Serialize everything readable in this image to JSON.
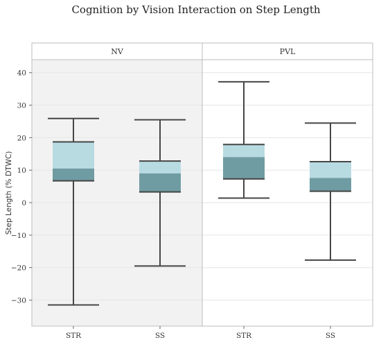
{
  "chart_data": {
    "type": "boxplot",
    "title": "Cognition by Vision Interaction on Step Length",
    "ylabel": "Step Length (% DTWC)",
    "xlabel": "",
    "ylim": [
      -38,
      44
    ],
    "yticks": [
      -30,
      -20,
      -10,
      0,
      10,
      20,
      30,
      40
    ],
    "ytick_labels": [
      "−30",
      "−20",
      "−10",
      "0",
      "10",
      "20",
      "30",
      "40"
    ],
    "grid": true,
    "facets": [
      {
        "label": "NV",
        "shaded": true,
        "categories": [
          "STR",
          "SS"
        ],
        "boxes": [
          {
            "whisker_low": -31.5,
            "q1": 6.7,
            "median": 10.5,
            "q3": 18.7,
            "whisker_high": 25.9
          },
          {
            "whisker_low": -19.5,
            "q1": 3.3,
            "median": 9.0,
            "q3": 12.8,
            "whisker_high": 25.5
          }
        ]
      },
      {
        "label": "PVL",
        "shaded": false,
        "categories": [
          "STR",
          "SS"
        ],
        "boxes": [
          {
            "whisker_low": 1.4,
            "q1": 7.3,
            "median": 14.0,
            "q3": 17.9,
            "whisker_high": 37.2
          },
          {
            "whisker_low": -17.7,
            "q1": 3.5,
            "median": 7.6,
            "q3": 12.6,
            "whisker_high": 24.5
          }
        ]
      }
    ],
    "colors": {
      "upper_box": "#b8dbe2",
      "lower_box": "#6f9ca2",
      "line": "#454545",
      "panel_shade": "#f2f2f2",
      "grid": "#e6e6e6"
    }
  }
}
